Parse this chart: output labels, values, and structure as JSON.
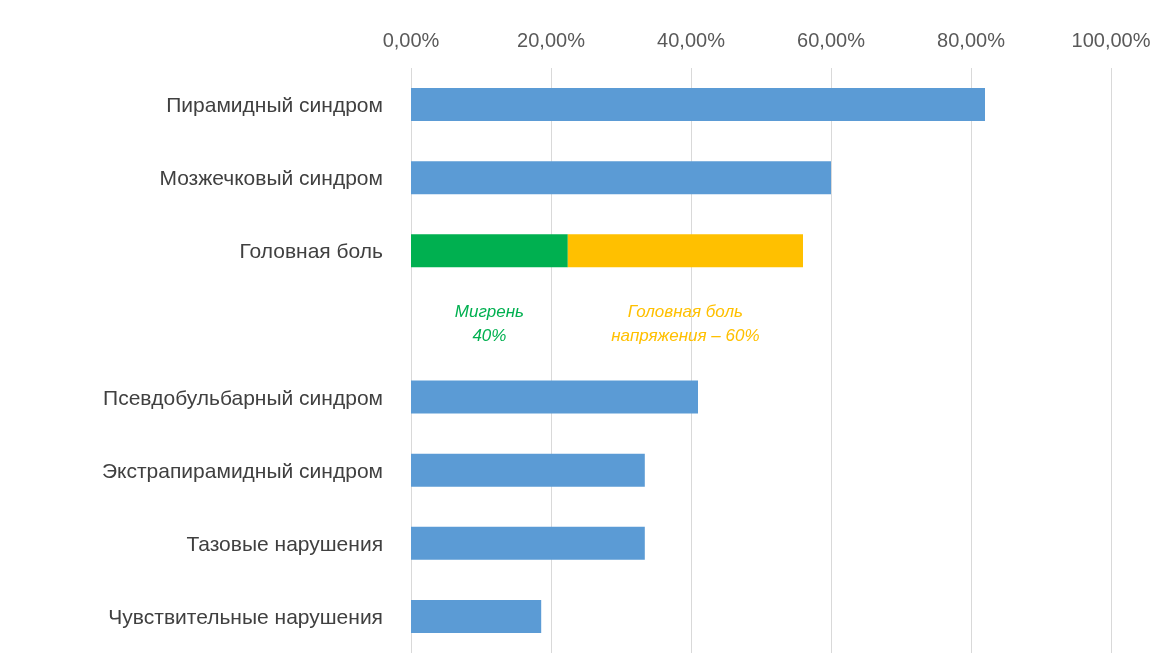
{
  "chart_data": {
    "type": "bar",
    "orientation": "horizontal",
    "stacked": true,
    "categories": [
      "Пирамидный синдром",
      "Мозжечковый синдром",
      "Головная боль",
      null,
      "Псевдобульбарный синдром",
      "Экстрапирамидный синдром",
      "Тазовые нарушения",
      "Чувствительные нарушения"
    ],
    "series": [
      {
        "color": "#5b9bd5",
        "values": [
          82,
          60,
          null,
          null,
          41,
          33.4,
          33.4,
          18.6
        ]
      },
      {
        "color": "#00b050",
        "values": [
          null,
          null,
          22.4,
          null,
          null,
          null,
          null,
          null
        ]
      },
      {
        "color": "#ffc000",
        "values": [
          null,
          null,
          33.6,
          null,
          null,
          null,
          null,
          null
        ]
      }
    ],
    "xlim": [
      0,
      100
    ],
    "xticks": [
      {
        "value": 0,
        "label": "0,00%"
      },
      {
        "value": 20,
        "label": "20,00%"
      },
      {
        "value": 40,
        "label": "40,00%"
      },
      {
        "value": 60,
        "label": "60,00%"
      },
      {
        "value": 80,
        "label": "80,00%"
      },
      {
        "value": 100,
        "label": "100,00%"
      }
    ],
    "grid": "x",
    "annotations": [
      "Мигрень 40%",
      "Головная боль напряжения – 60%"
    ]
  }
}
